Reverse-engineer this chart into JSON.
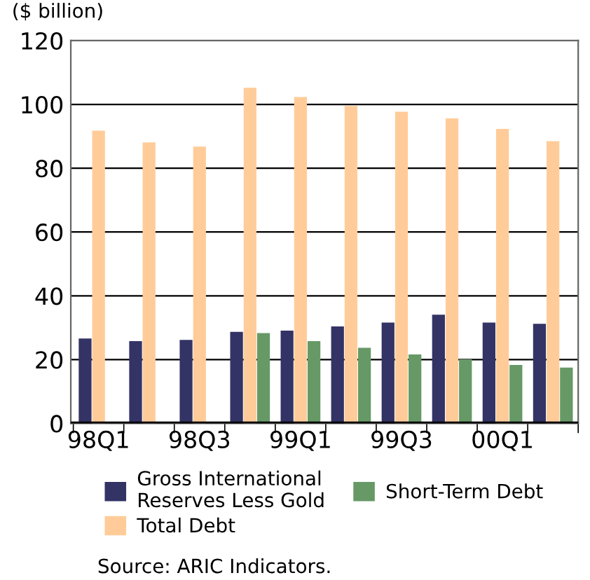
{
  "chart_data": {
    "type": "bar",
    "ylabel": "($ billion)",
    "categories": [
      "98Q1",
      null,
      "98Q3",
      null,
      "99Q1",
      null,
      "99Q3",
      null,
      "00Q1",
      null
    ],
    "series": [
      {
        "name": "Gross International Reserves Less Gold",
        "color": "#333366",
        "values": [
          26.6,
          25.8,
          26.2,
          28.7,
          29.1,
          30.4,
          31.6,
          34.1,
          31.6,
          31.2
        ]
      },
      {
        "name": "Total Debt",
        "color": "#ffcc99",
        "values": [
          91.8,
          88.1,
          86.8,
          105.2,
          102.3,
          99.5,
          97.7,
          95.6,
          92.3,
          88.5
        ]
      },
      {
        "name": "Short-Term Debt",
        "color": "#669966",
        "values": [
          null,
          null,
          null,
          28.3,
          25.8,
          23.7,
          21.6,
          20.1,
          18.3,
          17.5
        ]
      }
    ],
    "ylim": [
      0,
      120
    ],
    "yticks": [
      0,
      20,
      40,
      60,
      80,
      100,
      120
    ],
    "grid": "y",
    "legend": "bottom",
    "annotations": [
      "Source: ARIC Indicators."
    ]
  }
}
